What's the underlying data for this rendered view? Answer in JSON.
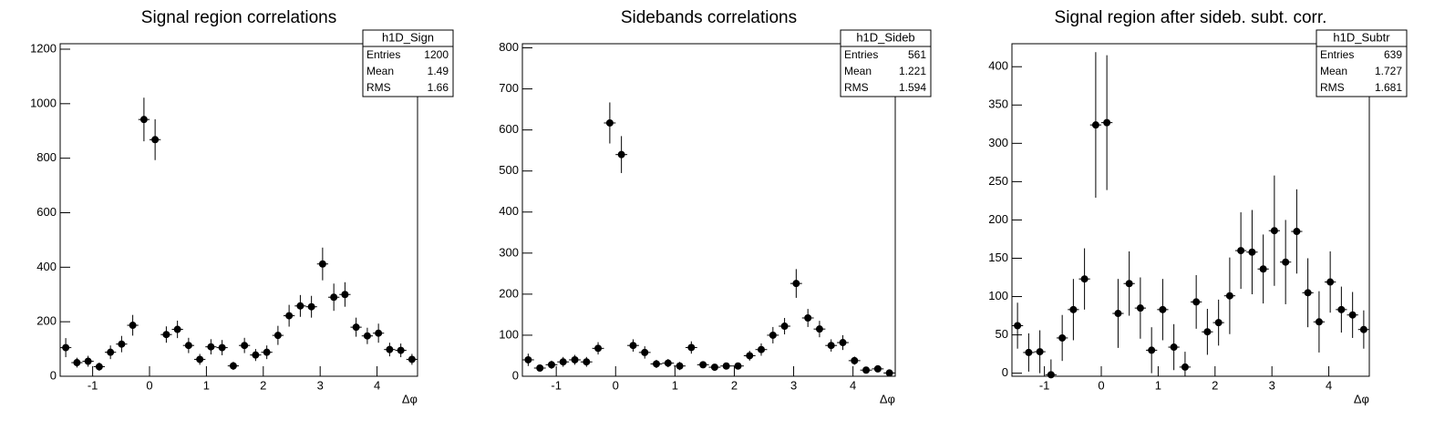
{
  "chart_data": [
    {
      "type": "errorbar",
      "title": "Signal region correlations",
      "x_label": "Δφ",
      "x": [
        -1.473,
        -1.276,
        -1.08,
        -0.884,
        -0.687,
        -0.491,
        -0.295,
        -0.098,
        0.098,
        0.295,
        0.491,
        0.687,
        0.884,
        1.08,
        1.276,
        1.473,
        1.669,
        1.865,
        2.062,
        2.258,
        2.454,
        2.651,
        2.847,
        3.043,
        3.24,
        3.436,
        3.632,
        3.829,
        4.025,
        4.221,
        4.418,
        4.614
      ],
      "values": [
        105,
        50,
        55,
        35,
        88,
        118,
        187,
        942,
        868,
        153,
        172,
        113,
        62,
        108,
        105,
        38,
        113,
        78,
        88,
        150,
        222,
        258,
        255,
        412,
        290,
        300,
        180,
        148,
        158,
        98,
        95,
        62
      ],
      "errors": [
        35,
        18,
        20,
        15,
        25,
        30,
        38,
        80,
        75,
        30,
        32,
        28,
        20,
        28,
        28,
        15,
        28,
        22,
        25,
        35,
        40,
        40,
        40,
        60,
        50,
        45,
        35,
        30,
        35,
        25,
        25,
        20
      ],
      "color": "#000000",
      "xlim": [
        -1.571,
        4.712
      ],
      "xticks": [
        -1,
        0,
        1,
        2,
        3,
        4
      ],
      "ylim": [
        0,
        1220
      ],
      "yticks": [
        0,
        200,
        400,
        600,
        800,
        1000,
        1200
      ],
      "stats": {
        "name": "h1D_Sign",
        "labels": [
          "Entries",
          "Mean",
          "RMS"
        ],
        "values": [
          1200,
          1.49,
          1.66
        ]
      }
    },
    {
      "type": "errorbar",
      "title": "Sidebands correlations",
      "x_label": "Δφ",
      "x": [
        -1.473,
        -1.276,
        -1.08,
        -0.884,
        -0.687,
        -0.491,
        -0.295,
        -0.098,
        0.098,
        0.295,
        0.491,
        0.687,
        0.884,
        1.08,
        1.276,
        1.473,
        1.669,
        1.865,
        2.062,
        2.258,
        2.454,
        2.651,
        2.847,
        3.043,
        3.24,
        3.436,
        3.632,
        3.829,
        4.025,
        4.221,
        4.418,
        4.614
      ],
      "values": [
        40,
        20,
        28,
        35,
        40,
        35,
        68,
        617,
        540,
        75,
        58,
        30,
        32,
        25,
        70,
        28,
        22,
        25,
        25,
        50,
        65,
        100,
        122,
        226,
        142,
        115,
        75,
        82,
        38,
        15,
        18,
        8
      ],
      "errors": [
        15,
        8,
        10,
        12,
        12,
        12,
        15,
        50,
        45,
        15,
        15,
        10,
        10,
        10,
        15,
        8,
        8,
        8,
        8,
        12,
        15,
        20,
        20,
        35,
        22,
        20,
        15,
        18,
        10,
        6,
        6,
        5
      ],
      "color": "#000000",
      "xlim": [
        -1.571,
        4.712
      ],
      "xticks": [
        -1,
        0,
        1,
        2,
        3,
        4
      ],
      "ylim": [
        0,
        810
      ],
      "yticks": [
        0,
        100,
        200,
        300,
        400,
        500,
        600,
        700,
        800
      ],
      "stats": {
        "name": "h1D_Sideb",
        "labels": [
          "Entries",
          "Mean",
          "RMS"
        ],
        "values": [
          561,
          1.221,
          1.594
        ]
      }
    },
    {
      "type": "errorbar",
      "title": "Signal region after sideb. subt. corr.",
      "x_label": "Δφ",
      "x": [
        -1.473,
        -1.276,
        -1.08,
        -0.884,
        -0.687,
        -0.491,
        -0.295,
        -0.098,
        0.098,
        0.295,
        0.491,
        0.687,
        0.884,
        1.08,
        1.276,
        1.473,
        1.669,
        1.865,
        2.062,
        2.258,
        2.454,
        2.651,
        2.847,
        3.043,
        3.24,
        3.436,
        3.632,
        3.829,
        4.025,
        4.221,
        4.418,
        4.614
      ],
      "values": [
        62,
        27,
        28,
        -2,
        46,
        83,
        123,
        324,
        327,
        78,
        117,
        85,
        30,
        83,
        34,
        8,
        93,
        54,
        66,
        101,
        160,
        158,
        136,
        186,
        145,
        185,
        105,
        67,
        119,
        83,
        76,
        57
      ],
      "errors": [
        30,
        25,
        28,
        20,
        30,
        40,
        40,
        95,
        88,
        45,
        42,
        40,
        30,
        40,
        30,
        20,
        35,
        30,
        30,
        50,
        50,
        55,
        45,
        72,
        55,
        55,
        45,
        40,
        40,
        30,
        30,
        25
      ],
      "color": "#000000",
      "xlim": [
        -1.571,
        4.712
      ],
      "xticks": [
        -1,
        0,
        1,
        2,
        3,
        4
      ],
      "ylim": [
        -4,
        430
      ],
      "yticks": [
        0,
        50,
        100,
        150,
        200,
        250,
        300,
        350,
        400
      ],
      "stats": {
        "name": "h1D_Subtr",
        "labels": [
          "Entries",
          "Mean",
          "RMS"
        ],
        "values": [
          639,
          1.727,
          1.681
        ]
      }
    }
  ]
}
